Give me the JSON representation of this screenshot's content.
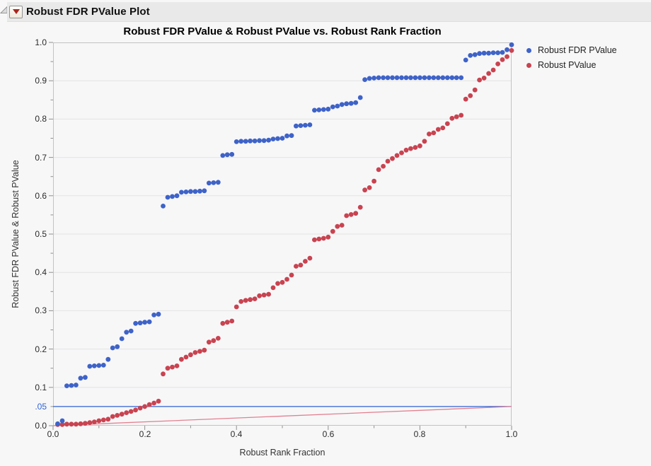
{
  "window": {
    "title": "Robust FDR PValue Plot"
  },
  "chart": {
    "title": "Robust FDR PValue & Robust PValue vs. Robust Rank Fraction",
    "x_title": "Robust Rank Fraction",
    "y_title": "Robust FDR PValue & Robust PValue",
    "legend": [
      {
        "label": "Robust FDR PValue",
        "color": "#3E63C8"
      },
      {
        "label": "Robust PValue",
        "color": "#C94350"
      }
    ]
  },
  "colors": {
    "blue_series": "#3E63C8",
    "red_series": "#C94350",
    "blue_ref_line": "#2F62D4",
    "red_ref_line": "#E2808F",
    "gridline": "#e3e3e3",
    "frame": "#c3c3c3",
    "tick": "#8f8f8f"
  },
  "chart_data": {
    "type": "scatter",
    "title": "Robust FDR PValue & Robust PValue vs. Robust Rank Fraction",
    "xlabel": "Robust Rank Fraction",
    "ylabel": "Robust FDR PValue & Robust PValue",
    "xlim": [
      0,
      1
    ],
    "ylim": [
      0,
      1
    ],
    "grid": "horizontal",
    "legend_position": "right",
    "xticks": [
      {
        "v": 0.0,
        "label": "0.0"
      },
      {
        "v": 0.2,
        "label": "0.2"
      },
      {
        "v": 0.4,
        "label": "0.4"
      },
      {
        "v": 0.6,
        "label": "0.6"
      },
      {
        "v": 0.8,
        "label": "0.8"
      },
      {
        "v": 1.0,
        "label": "1.0"
      }
    ],
    "xticks_minor": [
      0.1,
      0.3,
      0.5,
      0.7,
      0.9
    ],
    "yticks": [
      {
        "v": 0.0,
        "label": "0.0"
      },
      {
        "v": 0.05,
        "label": ".05",
        "color": "#2F62D4"
      },
      {
        "v": 0.1,
        "label": "0.1"
      },
      {
        "v": 0.2,
        "label": "0.2"
      },
      {
        "v": 0.3,
        "label": "0.3"
      },
      {
        "v": 0.4,
        "label": "0.4"
      },
      {
        "v": 0.5,
        "label": "0.5"
      },
      {
        "v": 0.6,
        "label": "0.6"
      },
      {
        "v": 0.7,
        "label": "0.7"
      },
      {
        "v": 0.8,
        "label": "0.8"
      },
      {
        "v": 0.9,
        "label": "0.9"
      },
      {
        "v": 1.0,
        "label": "1.0"
      }
    ],
    "yticks_minor": [
      0.05,
      0.15,
      0.25,
      0.35,
      0.45,
      0.55,
      0.65,
      0.75,
      0.85,
      0.95
    ],
    "x": [
      0.01,
      0.02,
      0.03,
      0.04,
      0.05,
      0.06,
      0.07,
      0.08,
      0.09,
      0.1,
      0.11,
      0.12,
      0.13,
      0.14,
      0.15,
      0.16,
      0.17,
      0.18,
      0.19,
      0.2,
      0.21,
      0.22,
      0.23,
      0.24,
      0.25,
      0.26,
      0.27,
      0.28,
      0.29,
      0.3,
      0.31,
      0.32,
      0.33,
      0.34,
      0.35,
      0.36,
      0.37,
      0.38,
      0.39,
      0.4,
      0.41,
      0.42,
      0.43,
      0.44,
      0.45,
      0.46,
      0.47,
      0.48,
      0.49,
      0.5,
      0.51,
      0.52,
      0.53,
      0.54,
      0.55,
      0.56,
      0.57,
      0.58,
      0.59,
      0.6,
      0.61,
      0.62,
      0.63,
      0.64,
      0.65,
      0.66,
      0.67,
      0.68,
      0.69,
      0.7,
      0.71,
      0.72,
      0.73,
      0.74,
      0.75,
      0.76,
      0.77,
      0.78,
      0.79,
      0.8,
      0.81,
      0.82,
      0.83,
      0.84,
      0.85,
      0.86,
      0.87,
      0.88,
      0.89,
      0.9,
      0.91,
      0.92,
      0.93,
      0.94,
      0.95,
      0.96,
      0.97,
      0.98,
      0.99,
      1.0
    ],
    "series": [
      {
        "name": "Robust FDR PValue",
        "color": "#3E63C8",
        "values": [
          0.005,
          0.013,
          0.104,
          0.105,
          0.106,
          0.124,
          0.126,
          0.155,
          0.156,
          0.157,
          0.158,
          0.173,
          0.203,
          0.206,
          0.227,
          0.244,
          0.247,
          0.267,
          0.268,
          0.27,
          0.271,
          0.289,
          0.291,
          0.573,
          0.596,
          0.598,
          0.6,
          0.609,
          0.61,
          0.611,
          0.611,
          0.612,
          0.613,
          0.633,
          0.634,
          0.635,
          0.705,
          0.707,
          0.708,
          0.741,
          0.742,
          0.742,
          0.743,
          0.743,
          0.744,
          0.744,
          0.745,
          0.748,
          0.749,
          0.75,
          0.756,
          0.757,
          0.782,
          0.783,
          0.784,
          0.785,
          0.823,
          0.824,
          0.825,
          0.826,
          0.832,
          0.834,
          0.838,
          0.84,
          0.841,
          0.843,
          0.856,
          0.903,
          0.906,
          0.907,
          0.908,
          0.908,
          0.908,
          0.908,
          0.908,
          0.908,
          0.908,
          0.908,
          0.908,
          0.908,
          0.908,
          0.908,
          0.908,
          0.908,
          0.908,
          0.908,
          0.908,
          0.908,
          0.908,
          0.954,
          0.966,
          0.968,
          0.971,
          0.972,
          0.972,
          0.973,
          0.973,
          0.974,
          0.981,
          0.994
        ]
      },
      {
        "name": "Robust PValue",
        "color": "#C94350",
        "values": [
          0.003,
          0.003,
          0.004,
          0.004,
          0.004,
          0.005,
          0.006,
          0.008,
          0.01,
          0.013,
          0.015,
          0.017,
          0.024,
          0.027,
          0.03,
          0.034,
          0.037,
          0.041,
          0.046,
          0.05,
          0.055,
          0.059,
          0.064,
          0.135,
          0.15,
          0.153,
          0.156,
          0.173,
          0.179,
          0.185,
          0.191,
          0.194,
          0.197,
          0.218,
          0.222,
          0.228,
          0.267,
          0.27,
          0.273,
          0.31,
          0.324,
          0.327,
          0.329,
          0.331,
          0.339,
          0.341,
          0.343,
          0.36,
          0.371,
          0.374,
          0.382,
          0.393,
          0.416,
          0.419,
          0.429,
          0.437,
          0.485,
          0.487,
          0.489,
          0.492,
          0.507,
          0.52,
          0.523,
          0.548,
          0.551,
          0.554,
          0.57,
          0.615,
          0.621,
          0.638,
          0.668,
          0.677,
          0.69,
          0.697,
          0.705,
          0.712,
          0.719,
          0.723,
          0.726,
          0.73,
          0.742,
          0.761,
          0.764,
          0.773,
          0.777,
          0.788,
          0.802,
          0.806,
          0.81,
          0.852,
          0.861,
          0.876,
          0.902,
          0.907,
          0.919,
          0.928,
          0.944,
          0.955,
          0.963,
          0.979
        ]
      }
    ],
    "ref_lines": [
      {
        "name": "alpha-threshold",
        "type": "horizontal",
        "y": 0.05,
        "color": "#2F62D4"
      },
      {
        "name": "alpha-times-rank",
        "type": "segment",
        "from": [
          0,
          0
        ],
        "to": [
          1,
          0.05
        ],
        "color": "#E2808F"
      }
    ]
  }
}
